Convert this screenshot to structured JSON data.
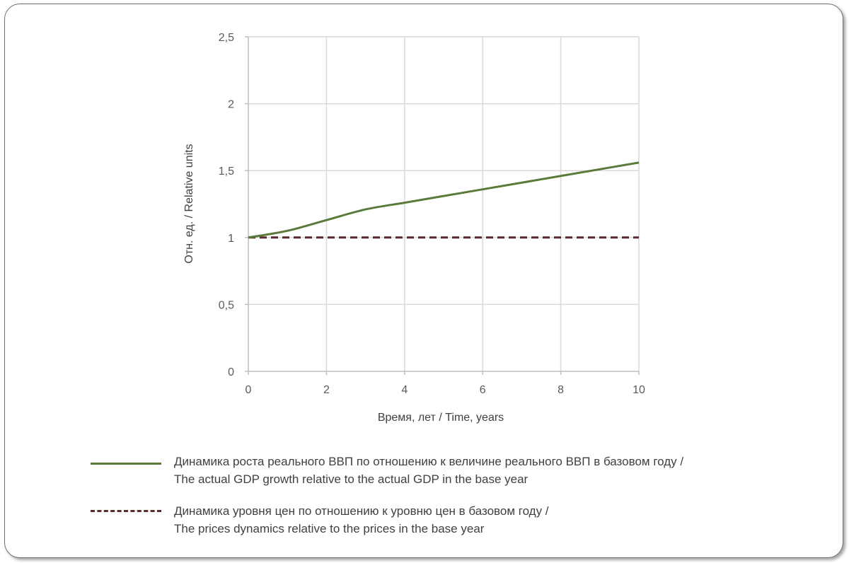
{
  "chart_data": {
    "type": "line",
    "xlabel": "Время, лет / Time, years",
    "ylabel": "Отн. ед. / Relative units",
    "xlim": [
      0,
      10
    ],
    "ylim": [
      0,
      2.5
    ],
    "xticks": [
      "0",
      "2",
      "4",
      "6",
      "8",
      "10"
    ],
    "xtick_values": [
      0,
      2,
      4,
      6,
      8,
      10
    ],
    "yticks": [
      "0",
      "0,5",
      "1",
      "1,5",
      "2",
      "2,5"
    ],
    "ytick_values": [
      0,
      0.5,
      1,
      1.5,
      2,
      2.5
    ],
    "grid": true,
    "legend_position": "bottom",
    "series": [
      {
        "name_ru": "Динамика роста реального ВВП по отношению к величине реального ВВП в базовом году /",
        "name_en": "The actual GDP growth relative to the actual GDP in the base year",
        "color": "#5a7a3a",
        "style": "solid",
        "x": [
          0,
          1,
          2,
          3,
          4,
          5,
          6,
          7,
          8,
          9,
          10
        ],
        "values": [
          1.0,
          1.05,
          1.13,
          1.21,
          1.26,
          1.31,
          1.36,
          1.41,
          1.46,
          1.51,
          1.56
        ]
      },
      {
        "name_ru": "Динамика уровня цен по отношению к уровню цен в базовом году /",
        "name_en": "The prices dynamics relative to the prices in the base year",
        "color": "#5b2c2c",
        "style": "dashed",
        "x": [
          0,
          10
        ],
        "values": [
          1.0,
          1.0
        ]
      }
    ]
  }
}
